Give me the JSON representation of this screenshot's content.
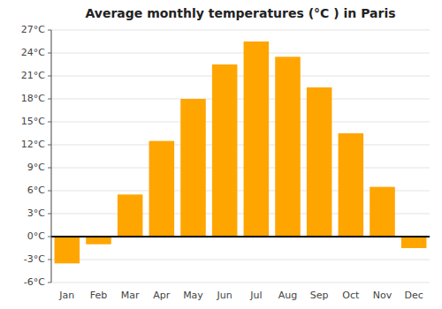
{
  "chart_data": {
    "type": "bar",
    "title": "Average monthly temperatures (°C ) in Paris",
    "categories": [
      "Jan",
      "Feb",
      "Mar",
      "Apr",
      "May",
      "Jun",
      "Jul",
      "Aug",
      "Sep",
      "Oct",
      "Nov",
      "Dec"
    ],
    "values": [
      -3.5,
      -1.0,
      5.5,
      12.5,
      18.0,
      22.5,
      25.5,
      23.5,
      19.5,
      13.5,
      6.5,
      -1.5
    ],
    "color": "#FFA500",
    "ylim": [
      -6,
      27
    ],
    "yticks": [
      {
        "value": -6,
        "label": "-6°C"
      },
      {
        "value": -3,
        "label": "-3°C"
      },
      {
        "value": 0,
        "label": "0°C"
      },
      {
        "value": 3,
        "label": "3°C"
      },
      {
        "value": 6,
        "label": "6°C"
      },
      {
        "value": 9,
        "label": "9°C"
      },
      {
        "value": 12,
        "label": "12°C"
      },
      {
        "value": 15,
        "label": "15°C"
      },
      {
        "value": 18,
        "label": "18°C"
      },
      {
        "value": 21,
        "label": "21°C"
      },
      {
        "value": 24,
        "label": "24°C"
      },
      {
        "value": 27,
        "label": "27°C"
      }
    ],
    "grid": true
  }
}
